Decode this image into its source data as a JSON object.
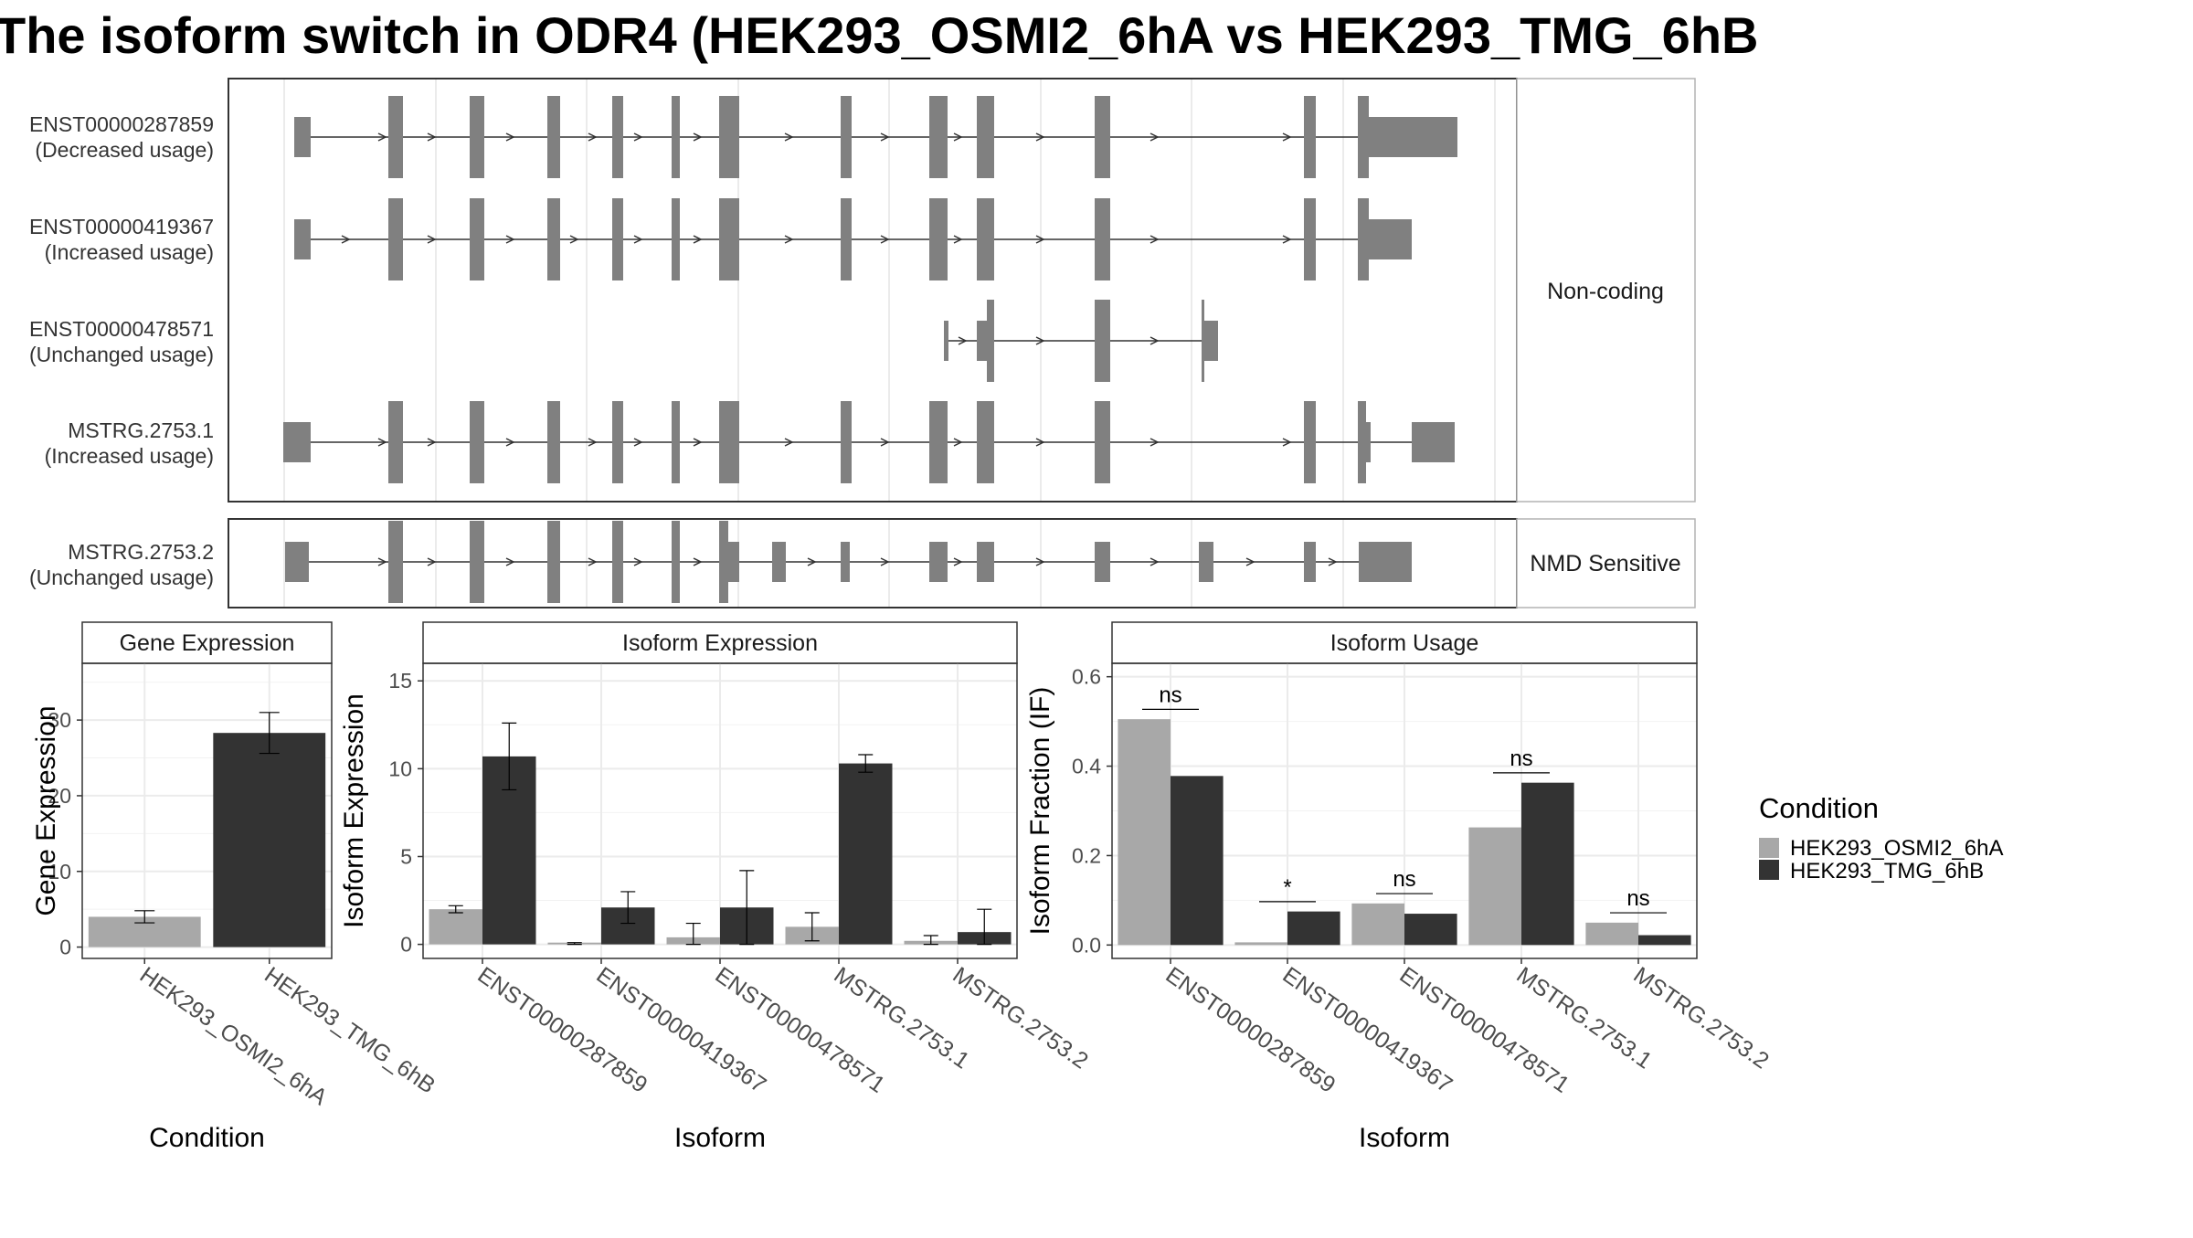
{
  "title": "The isoform switch in ODR4 (HEK293_OSMI2_6hA vs HEK293_TMG_6hB",
  "colors": {
    "cond_a": "#a8a8a8",
    "cond_b": "#333333",
    "exon": "#808080"
  },
  "transcripts": [
    {
      "id": "ENST00000287859",
      "usage": "(Decreased usage)",
      "group": "Non-coding"
    },
    {
      "id": "ENST00000419367",
      "usage": "(Increased usage)",
      "group": "Non-coding"
    },
    {
      "id": "ENST00000478571",
      "usage": "(Unchanged usage)",
      "group": "Non-coding"
    },
    {
      "id": "MSTRG.2753.1",
      "usage": "(Increased usage)",
      "group": "Non-coding"
    },
    {
      "id": "MSTRG.2753.2",
      "usage": "(Unchanged usage)",
      "group": "NMD Sensitive"
    }
  ],
  "groups": [
    "Non-coding",
    "NMD Sensitive"
  ],
  "chart_data": [
    {
      "type": "bar",
      "title": "Gene Expression",
      "xlabel": "Condition",
      "ylabel": "Gene Expression",
      "categories": [
        "HEK293_OSMI2_6hA",
        "HEK293_TMG_6hB"
      ],
      "values": [
        4.0,
        28.3
      ],
      "error_low": [
        3.2,
        25.6
      ],
      "error_high": [
        4.8,
        31.0
      ],
      "ylim": [
        -1.5,
        37.5
      ],
      "yticks": [
        0,
        10,
        20,
        30
      ]
    },
    {
      "type": "bar",
      "title": "Isoform Expression",
      "xlabel": "Isoform",
      "ylabel": "Isoform Expression",
      "categories": [
        "ENST00000287859",
        "ENST00000419367",
        "ENST00000478571",
        "MSTRG.2753.1",
        "MSTRG.2753.2"
      ],
      "series": [
        {
          "name": "HEK293_OSMI2_6hA",
          "values": [
            2.0,
            0.1,
            0.4,
            1.0,
            0.2
          ],
          "error_low": [
            1.8,
            0.0,
            0.0,
            0.2,
            0.0
          ],
          "error_high": [
            2.2,
            0.1,
            1.2,
            1.8,
            0.5
          ]
        },
        {
          "name": "HEK293_TMG_6hB",
          "values": [
            10.7,
            2.1,
            2.1,
            10.3,
            0.7
          ],
          "error_low": [
            8.8,
            1.2,
            0.0,
            9.8,
            0.0
          ],
          "error_high": [
            12.6,
            3.0,
            4.2,
            10.8,
            2.0
          ]
        }
      ],
      "ylim": [
        -0.8,
        16.0
      ],
      "yticks": [
        0,
        5,
        10,
        15
      ]
    },
    {
      "type": "bar",
      "title": "Isoform Usage",
      "xlabel": "Isoform",
      "ylabel": "Isoform Fraction (IF)",
      "categories": [
        "ENST00000287859",
        "ENST00000419367",
        "ENST00000478571",
        "MSTRG.2753.1",
        "MSTRG.2753.2"
      ],
      "series": [
        {
          "name": "HEK293_OSMI2_6hA",
          "values": [
            0.505,
            0.006,
            0.093,
            0.263,
            0.05
          ]
        },
        {
          "name": "HEK293_TMG_6hB",
          "values": [
            0.378,
            0.075,
            0.07,
            0.363,
            0.022
          ]
        }
      ],
      "significance": [
        "ns",
        "*",
        "ns",
        "ns",
        "ns"
      ],
      "ylim": [
        -0.03,
        0.63
      ],
      "yticks": [
        "0.0",
        "0.2",
        "0.4",
        "0.6"
      ]
    }
  ],
  "legend": {
    "title": "Condition",
    "items": [
      "HEK293_OSMI2_6hA",
      "HEK293_TMG_6hB"
    ]
  }
}
